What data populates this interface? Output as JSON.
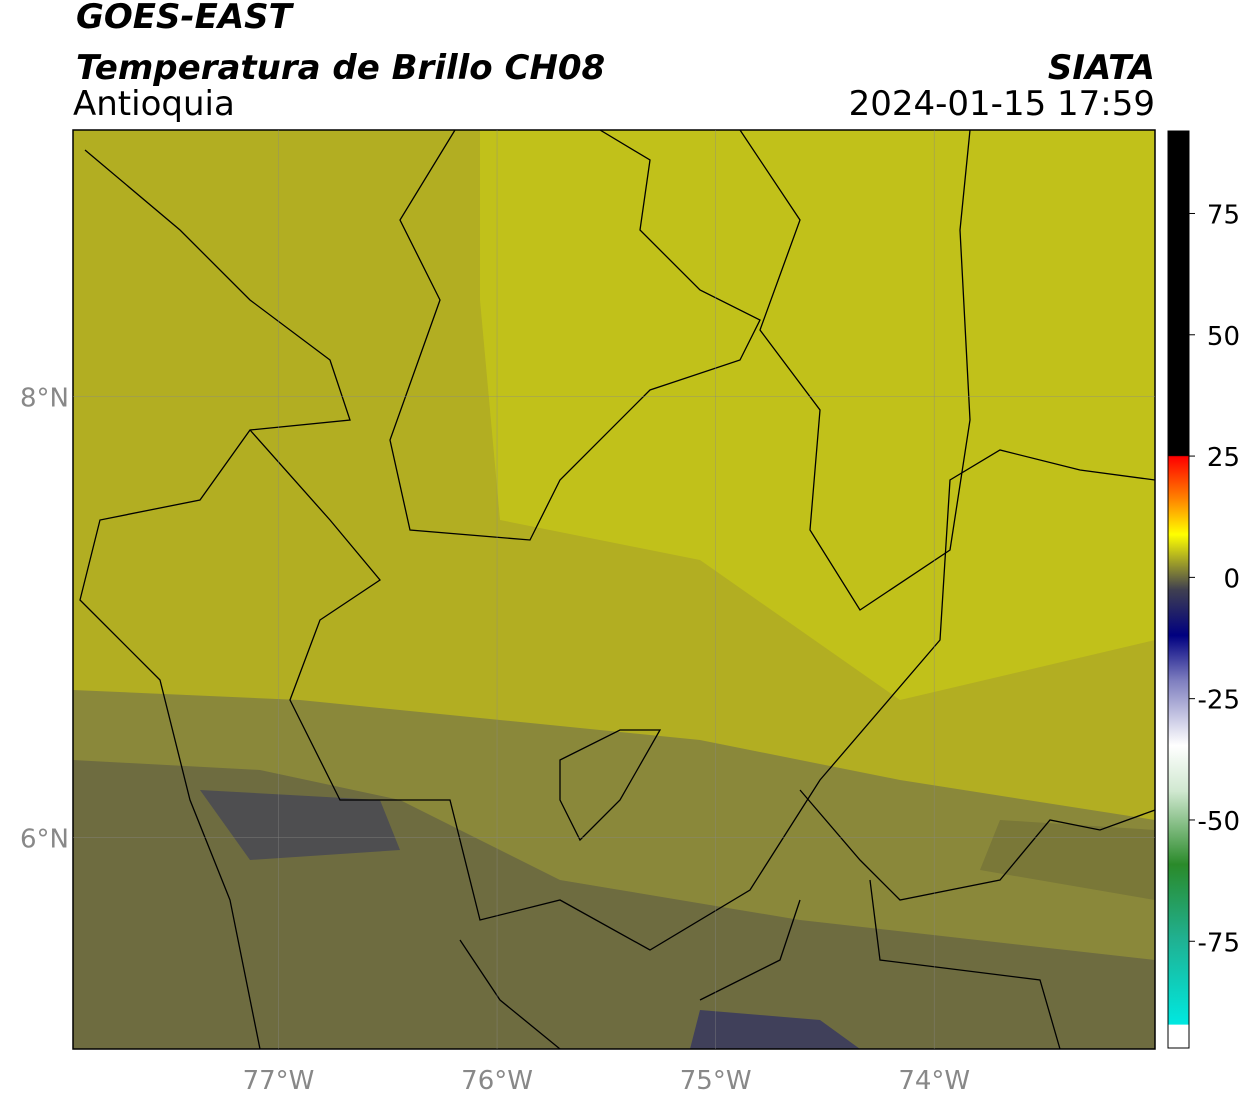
{
  "header": {
    "satellite": "GOES-EAST",
    "product": "Temperatura de Brillo CH08",
    "region": "Antioquia",
    "source": "SIATA",
    "timestamp": "2024-01-15 17:59"
  },
  "map": {
    "xlim": [
      -77.94,
      -72.99
    ],
    "ylim": [
      5.04,
      9.21
    ],
    "xticks": [
      {
        "value": -77,
        "label": "77°W"
      },
      {
        "value": -76,
        "label": "76°W"
      },
      {
        "value": -75,
        "label": "75°W"
      },
      {
        "value": -74,
        "label": "74°W"
      }
    ],
    "yticks": [
      {
        "value": 8,
        "label": "8°N"
      },
      {
        "value": 6,
        "label": "6°N"
      }
    ]
  },
  "colorbar": {
    "lim": [
      -97,
      92
    ],
    "ticks": [
      75,
      50,
      25,
      0,
      -25,
      -50,
      -75
    ]
  }
}
